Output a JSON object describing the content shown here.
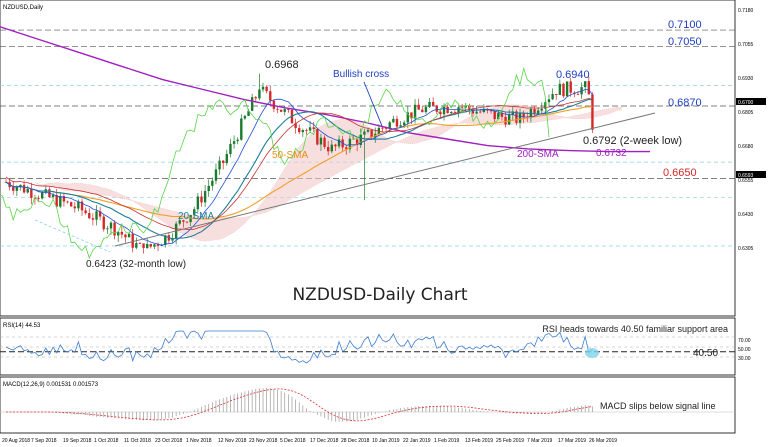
{
  "window": {
    "symbol_label": "NZDUSD,Daily",
    "title": "NZDUSD-Daily Chart"
  },
  "colors": {
    "bull": "#1a7a2e",
    "bear": "#d62828",
    "sma20": "#1e7f9a",
    "sma50": "#f0a020",
    "sma200": "#a020c0",
    "tenkan": "#1f4fd8",
    "kijun": "#c83232",
    "chikou": "#5bd34a",
    "trendline": "#777777",
    "annotation_blue": "#1f3fbf",
    "annotation_red": "#d62828",
    "rsi": "#3f7fd0",
    "macd_hist": "#999999",
    "macd_signal": "#e03030",
    "highlight": "#7fd3e8"
  },
  "price_axis": {
    "ticks": [
      "0.7180",
      "0.7055",
      "0.6930",
      "0.6805",
      "0.6680",
      "0.6555",
      "0.6430",
      "0.6305"
    ],
    "level_labels": [
      "0.6700",
      "0.6593"
    ]
  },
  "indicators": {
    "rsi_label": "RSI(14) 44.53",
    "rsi_ticks": [
      "70.00",
      "50.00",
      "30.00"
    ],
    "macd_label": "MACD(12,26,9) 0.001531 0.001573"
  },
  "annotations": {
    "level_7100": "0.7100",
    "level_7050": "0.7050",
    "high_6968": "0.6968",
    "high_6940": "0.6940",
    "level_6870": "0.6870",
    "low_6792": "0.6792 (2-week low)",
    "sma200_val": "0.6732",
    "level_6650": "0.6650",
    "low_6423": "0.6423 (32-month low)",
    "bullish_cross": "Bullish cross",
    "sma50_label": "50-SMA",
    "sma20_label": "20-SMA",
    "sma200_label": "200-SMA",
    "rsi_comment": "RSI heads towards 40.50 familiar support area",
    "rsi_level": "40.50",
    "macd_comment": "MACD slips below signal line"
  },
  "x_axis_labels": [
    "20 Aug 2018",
    "7 Sep 2018",
    "19 Sep 2018",
    "1 Oct 2018",
    "11 Oct 2018",
    "23 Oct 2018",
    "1 Nov 2018",
    "12 Nov 2018",
    "23 Nov 2018",
    "5 Dec 2018",
    "17 Dec 2018",
    "28 Dec 2018",
    "10 Jan 2019",
    "22 Jan 2019",
    "1 Feb 2019",
    "13 Feb 2019",
    "25 Feb 2019",
    "7 Mar 2019",
    "17 Mar 2019",
    "26 Mar 2019"
  ],
  "chart_data": {
    "type": "candlestick",
    "symbol": "NZDUSD",
    "timeframe": "Daily",
    "title": "NZDUSD-Daily Chart",
    "ylim": [
      0.624,
      0.7185
    ],
    "x_start": "2018-08-20",
    "x_end": "2019-03-26",
    "key_points": [
      {
        "date": "2018-10-08",
        "price": 0.6423,
        "label": "0.6423 (32-month low)"
      },
      {
        "date": "2018-12-04",
        "price": 0.6968,
        "label": "0.6968"
      },
      {
        "date": "2019-03-20",
        "price": 0.694,
        "label": "0.6940"
      },
      {
        "date": "2019-03-26",
        "price": 0.6792,
        "label": "0.6792 (2-week low)"
      }
    ],
    "horizontal_levels": [
      0.71,
      0.705,
      0.687,
      0.665
    ],
    "series": [
      {
        "name": "20-SMA",
        "values": [
          0.6655,
          0.66,
          0.657,
          0.654,
          0.6545,
          0.66,
          0.672,
          0.685,
          0.687,
          0.683,
          0.682,
          0.681,
          0.682,
          0.6845,
          0.687,
          0.688,
          0.6878
        ]
      },
      {
        "name": "50-SMA",
        "values": [
          0.672,
          0.665,
          0.66,
          0.657,
          0.6565,
          0.659,
          0.665,
          0.672,
          0.676,
          0.678,
          0.679,
          0.68,
          0.6815,
          0.6835,
          0.685,
          0.686,
          0.6865
        ]
      },
      {
        "name": "200-SMA",
        "values": [
          0.711,
          0.707,
          0.703,
          0.699,
          0.695,
          0.692,
          0.689,
          0.6865,
          0.6845,
          0.682,
          0.679,
          0.677,
          0.675,
          0.674,
          0.6735,
          0.6732,
          0.6732
        ]
      }
    ],
    "rsi": {
      "period": 14,
      "value": 44.53,
      "levels": [
        70,
        50,
        30
      ],
      "support": 40.5
    },
    "macd": {
      "params": [
        12,
        26,
        9
      ],
      "macd": 0.001531,
      "signal": 0.001573
    }
  }
}
